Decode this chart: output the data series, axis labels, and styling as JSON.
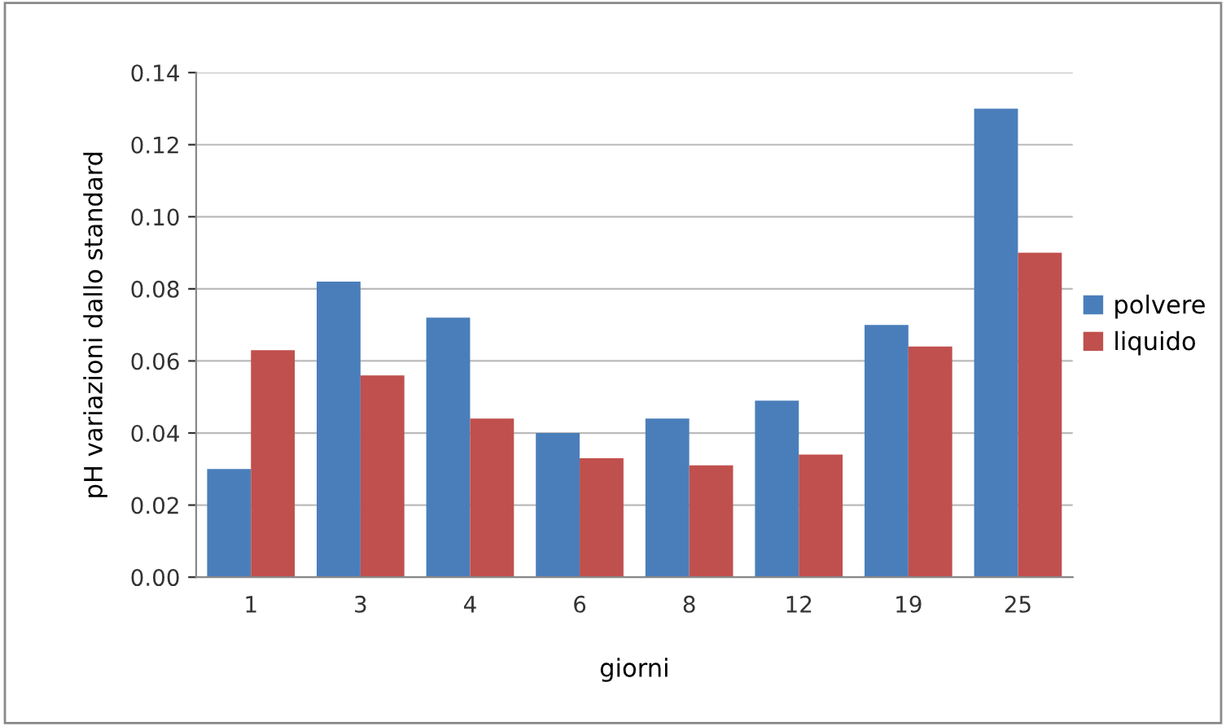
{
  "chart_data": {
    "type": "bar",
    "xlabel": "giorni",
    "ylabel": "pH variazioni dallo standard",
    "categories": [
      "1",
      "3",
      "4",
      "6",
      "8",
      "12",
      "19",
      "25"
    ],
    "series": [
      {
        "name": "polvere",
        "color": "#4a7ebb",
        "values": [
          0.03,
          0.082,
          0.072,
          0.04,
          0.044,
          0.049,
          0.07,
          0.13
        ]
      },
      {
        "name": "liquido",
        "color": "#c0504d",
        "values": [
          0.063,
          0.056,
          0.044,
          0.033,
          0.031,
          0.034,
          0.064,
          0.09
        ]
      }
    ],
    "ylim": [
      0,
      0.14
    ],
    "yticks": [
      {
        "value": 0,
        "label": "0.00"
      },
      {
        "value": 0.02,
        "label": "0.02"
      },
      {
        "value": 0.04,
        "label": "0.04"
      },
      {
        "value": 0.06,
        "label": "0.06"
      },
      {
        "value": 0.08,
        "label": "0.08"
      },
      {
        "value": 0.1,
        "label": "0.10"
      },
      {
        "value": 0.12,
        "label": "0.12"
      },
      {
        "value": 0.14,
        "label": "0.14"
      }
    ],
    "grid": "y",
    "legend": "right"
  }
}
